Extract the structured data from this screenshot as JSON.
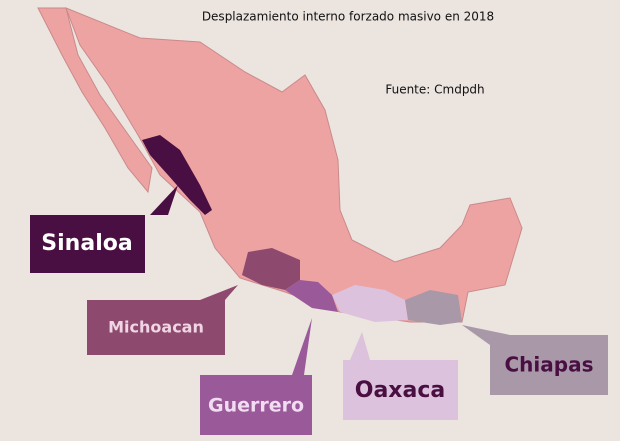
{
  "header": {
    "title": "Desplazamiento interno forzado masivo en 2018",
    "source": "Fuente: Cmdpdh"
  },
  "regions": [
    {
      "label": "Sinaloa"
    },
    {
      "label": "Michoacan"
    },
    {
      "label": "Guerrero"
    },
    {
      "label": "Oaxaca"
    },
    {
      "label": "Chiapas"
    }
  ]
}
